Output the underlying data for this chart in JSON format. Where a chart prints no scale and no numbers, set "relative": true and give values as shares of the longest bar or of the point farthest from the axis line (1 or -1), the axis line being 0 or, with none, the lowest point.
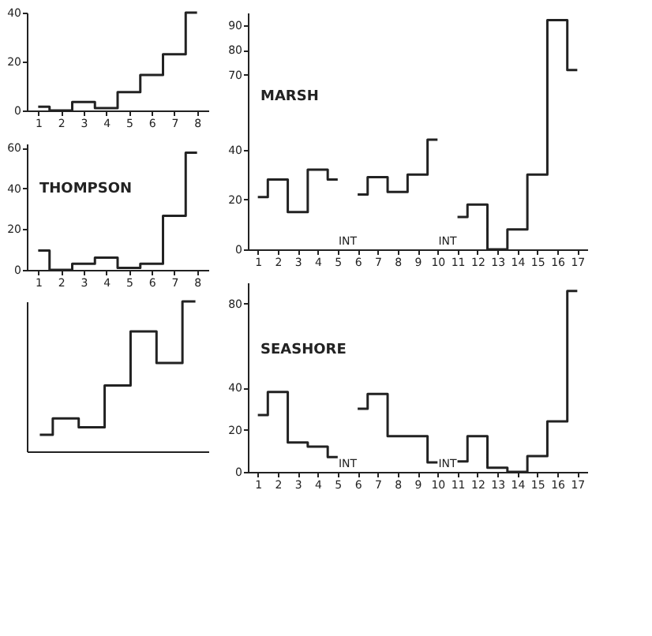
{
  "chart_data": [
    {
      "type": "step",
      "x": [
        1,
        2,
        3,
        4,
        5,
        6,
        7,
        8
      ],
      "xlim": [
        0.5,
        8.5
      ],
      "xticks": [
        1,
        2,
        3,
        4,
        5,
        6,
        7,
        8
      ],
      "ylim": [
        0,
        40
      ],
      "yticks": [
        0,
        20,
        40
      ],
      "series": [
        {
          "color": "#222222",
          "values": [
            1.5,
            0,
            3.5,
            1,
            7.5,
            14.5,
            23,
            40
          ]
        }
      ]
    },
    {
      "type": "step",
      "title": "THOMPSON",
      "x": [
        1,
        2,
        3,
        4,
        5,
        6,
        7,
        8
      ],
      "xlim": [
        0.5,
        8.5
      ],
      "xticks": [
        1,
        2,
        3,
        4,
        5,
        6,
        7,
        8
      ],
      "ylim": [
        0,
        62
      ],
      "yticks": [
        0,
        20,
        40,
        60
      ],
      "series": [
        {
          "color": "#222222",
          "values": [
            9.5,
            0,
            3,
            6,
            1,
            3,
            26.5,
            57.5
          ]
        }
      ]
    },
    {
      "type": "step",
      "relative": true,
      "categories": [
        null,
        null,
        null,
        null,
        null,
        null,
        null
      ],
      "series": [
        {
          "color": "#222222",
          "values": [
            0.11,
            0.22,
            0.16,
            0.44,
            0.8,
            0.59,
            1
          ]
        }
      ]
    },
    {
      "type": "step",
      "title": "MARSH",
      "xlim": [
        0.5,
        17.5
      ],
      "xticks": [
        1,
        2,
        3,
        4,
        5,
        6,
        7,
        8,
        9,
        10,
        11,
        12,
        13,
        14,
        15,
        16,
        17
      ],
      "ylim": [
        0,
        95
      ],
      "yticks": [
        0,
        20,
        40,
        70,
        80,
        90
      ],
      "annotations": [
        "INT",
        "INT"
      ],
      "series": [
        {
          "color": "#222222",
          "x": [
            1,
            2,
            3,
            4,
            5
          ],
          "values": [
            21,
            28,
            15,
            32,
            28
          ]
        },
        {
          "color": "#222222",
          "x": [
            6,
            7,
            8,
            9,
            10
          ],
          "values": [
            22,
            29,
            23,
            30,
            44
          ]
        },
        {
          "color": "#222222",
          "x": [
            11,
            12,
            13,
            14,
            15,
            16,
            17
          ],
          "values": [
            13,
            18,
            0,
            8,
            30,
            92,
            72
          ]
        }
      ]
    },
    {
      "type": "step",
      "title": "SEASHORE",
      "xlim": [
        0.5,
        17.5
      ],
      "xticks": [
        1,
        2,
        3,
        4,
        5,
        6,
        7,
        8,
        9,
        10,
        11,
        12,
        13,
        14,
        15,
        16,
        17
      ],
      "ylim": [
        0,
        90
      ],
      "yticks": [
        0,
        20,
        40,
        80
      ],
      "annotations": [
        "INT",
        "INT"
      ],
      "series": [
        {
          "color": "#222222",
          "x": [
            1,
            2,
            3,
            4,
            5
          ],
          "values": [
            27,
            38,
            14,
            12,
            7
          ]
        },
        {
          "color": "#222222",
          "x": [
            6,
            7,
            8,
            9,
            10
          ],
          "values": [
            30,
            37,
            17,
            17,
            4.5
          ]
        },
        {
          "color": "#222222",
          "x": [
            11,
            12,
            13,
            14,
            15,
            16,
            17
          ],
          "values": [
            5,
            17,
            2,
            0,
            7.5,
            24,
            86
          ]
        }
      ]
    }
  ]
}
